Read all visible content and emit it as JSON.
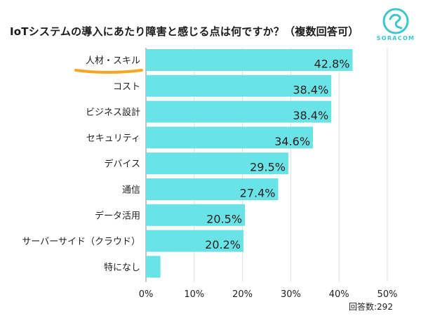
{
  "title": "IoTシステムの導入にあたり障害と感じる点は何ですか？（複数回答可）",
  "brand": {
    "name": "SORACOM",
    "color": "#3cc8c8"
  },
  "respondents": "回答数:292",
  "colors": {
    "bar": "#6ae3e6",
    "highlight": "#f5a623",
    "grid": "#dddddd"
  },
  "chart_data": {
    "type": "bar",
    "orientation": "horizontal",
    "title": "IoTシステムの導入にあたり障害と感じる点は何ですか？（複数回答可）",
    "categories": [
      "人材・スキル",
      "コスト",
      "ビジネス設計",
      "セキュリティ",
      "デバイス",
      "通信",
      "データ活用",
      "サーバーサイド（クラウド）",
      "特になし"
    ],
    "values": [
      42.8,
      38.4,
      38.4,
      34.6,
      29.5,
      27.4,
      20.5,
      20.2,
      3.0
    ],
    "labels": [
      "42.8%",
      "38.4%",
      "38.4%",
      "34.6%",
      "29.5%",
      "27.4%",
      "20.5%",
      "20.2%",
      ""
    ],
    "xlim": [
      0,
      50
    ],
    "xticks": [
      0,
      10,
      20,
      30,
      40,
      50
    ],
    "xtick_labels": [
      "0%",
      "10%",
      "20%",
      "30%",
      "40%",
      "50%"
    ],
    "highlighted_category": "人材・スキル",
    "grid": true
  }
}
